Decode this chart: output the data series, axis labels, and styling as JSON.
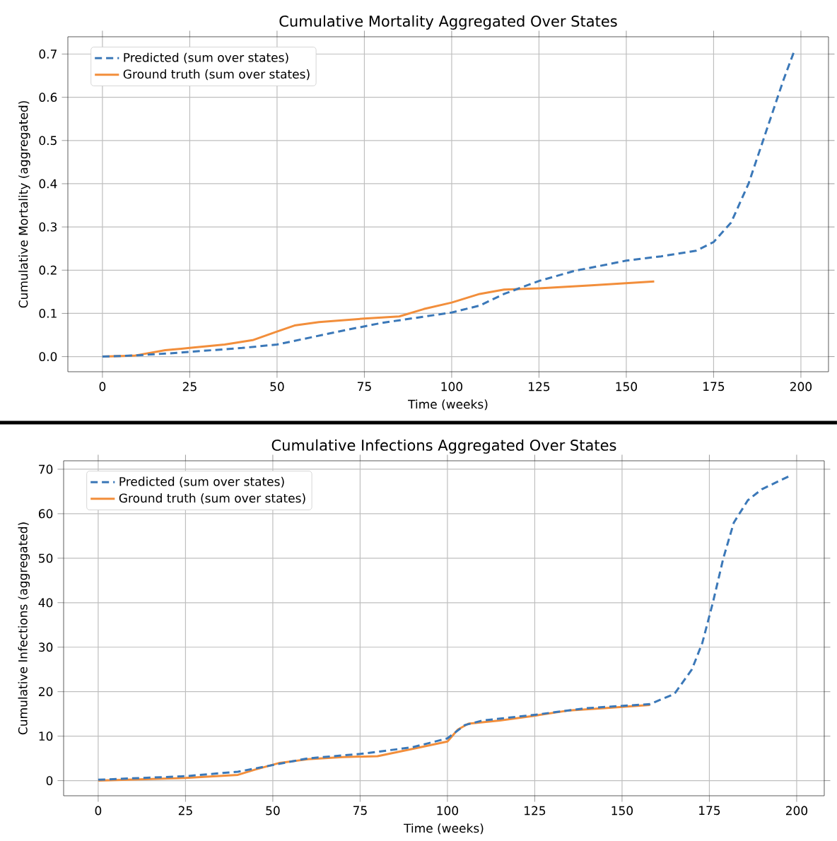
{
  "chart_data": [
    {
      "type": "line",
      "title": "Cumulative Mortality Aggregated Over States",
      "xlabel": "Time (weeks)",
      "ylabel": "Cumulative Mortality (aggregated)",
      "xlim": [
        -9.9,
        207.9
      ],
      "ylim": [
        -0.035,
        0.74
      ],
      "xticks": [
        0,
        25,
        50,
        75,
        100,
        125,
        150,
        175,
        200
      ],
      "yticks": [
        {
          "value": 0,
          "label": "0.0"
        },
        {
          "value": 0.1,
          "label": "0.1"
        },
        {
          "value": 0.2,
          "label": "0.2"
        },
        {
          "value": 0.3,
          "label": "0.3"
        },
        {
          "value": 0.4,
          "label": "0.4"
        },
        {
          "value": 0.5,
          "label": "0.5"
        },
        {
          "value": 0.6,
          "label": "0.6"
        },
        {
          "value": 0.7,
          "label": "0.7"
        }
      ],
      "grid": true,
      "legend": "top left",
      "series": [
        {
          "name": "Predicted (sum over states)",
          "color": "#3b78b8",
          "line_style": "dashed",
          "x": [
            0,
            10,
            20,
            30,
            40,
            50,
            60,
            70,
            80,
            90,
            100,
            108,
            115,
            125,
            135,
            150,
            160,
            170,
            175,
            180,
            185,
            190,
            195,
            198
          ],
          "values": [
            0,
            0.003,
            0.008,
            0.014,
            0.02,
            0.028,
            0.045,
            0.062,
            0.078,
            0.09,
            0.102,
            0.118,
            0.145,
            0.175,
            0.198,
            0.222,
            0.232,
            0.245,
            0.265,
            0.31,
            0.4,
            0.52,
            0.64,
            0.705
          ]
        },
        {
          "name": "Ground truth (sum over states)",
          "color": "#f28e3b",
          "line_style": "solid",
          "x": [
            0,
            9,
            18,
            25,
            35,
            43,
            50,
            55,
            62,
            75,
            85,
            92,
            100,
            108,
            115,
            125,
            140,
            158
          ],
          "values": [
            0,
            0.002,
            0.015,
            0.02,
            0.028,
            0.038,
            0.058,
            0.072,
            0.08,
            0.088,
            0.093,
            0.11,
            0.125,
            0.145,
            0.155,
            0.158,
            0.165,
            0.174
          ]
        }
      ]
    },
    {
      "type": "line",
      "title": "Cumulative Infections Aggregated Over States",
      "xlabel": "Time (weeks)",
      "ylabel": "Cumulative Infections (aggregated)",
      "xlim": [
        -9.9,
        207.9
      ],
      "ylim": [
        -3.4,
        71.9
      ],
      "xticks": [
        0,
        25,
        50,
        75,
        100,
        125,
        150,
        175,
        200
      ],
      "yticks": [
        0,
        10,
        20,
        30,
        40,
        50,
        60,
        70
      ],
      "grid": true,
      "legend": "top left",
      "series": [
        {
          "name": "Predicted (sum over states)",
          "color": "#3b78b8",
          "line_style": "dashed",
          "x": [
            0,
            25,
            40,
            50,
            60,
            75,
            90,
            100,
            105,
            110,
            125,
            140,
            158,
            165,
            170,
            173,
            176,
            179,
            182,
            186,
            190,
            198
          ],
          "values": [
            0.2,
            1.0,
            2,
            3.5,
            5,
            6,
            7.5,
            9.5,
            12.5,
            13.5,
            14.8,
            16.3,
            17.2,
            19.5,
            25,
            31,
            40,
            50,
            58,
            63,
            65.5,
            68.5
          ]
        },
        {
          "name": "Ground truth (sum over states)",
          "color": "#f28e3b",
          "line_style": "solid",
          "x": [
            0,
            25,
            40,
            45,
            52,
            60,
            70,
            80,
            88,
            100,
            103,
            106,
            115,
            125,
            135,
            145,
            158
          ],
          "values": [
            0,
            0.6,
            1.3,
            2.5,
            4,
            4.8,
            5.3,
            5.5,
            6.8,
            8.8,
            11.5,
            12.8,
            13.5,
            14.6,
            15.8,
            16.3,
            17
          ]
        }
      ]
    }
  ]
}
